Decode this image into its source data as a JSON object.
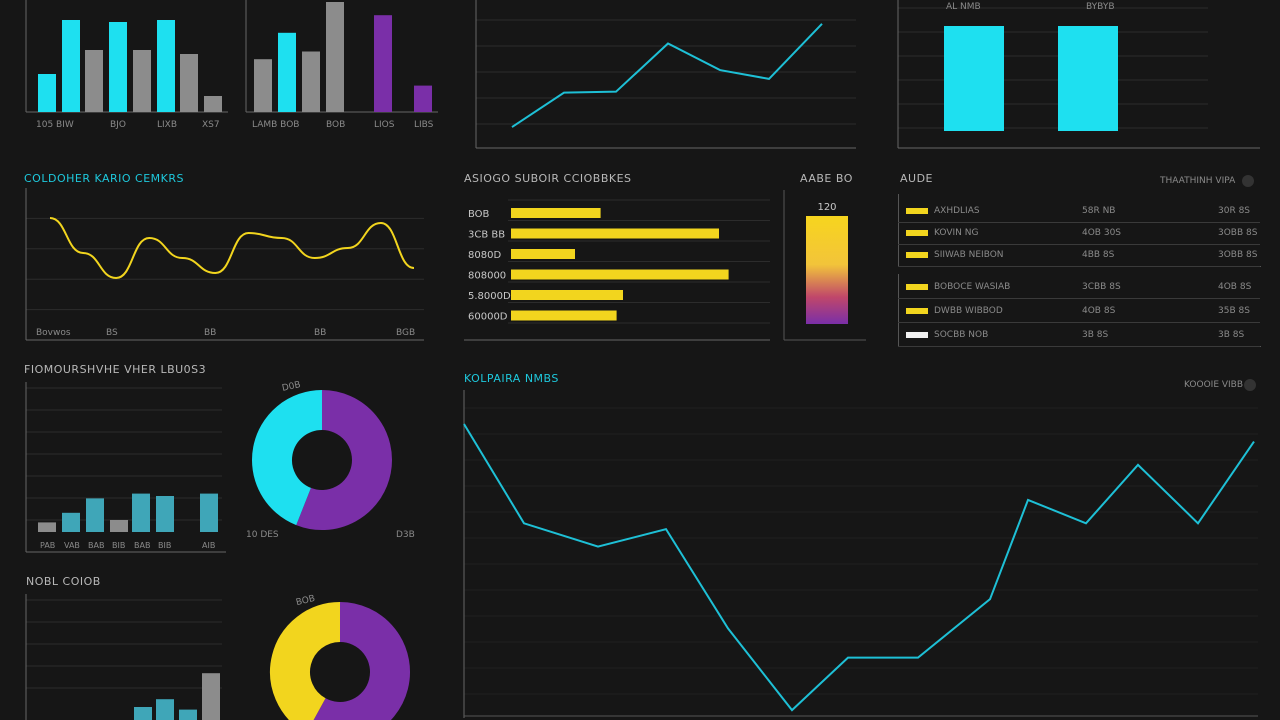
{
  "colors": {
    "bg": "#161616",
    "cyan": "#1ee0f0",
    "gray": "#8c8c8c",
    "purple": "#7a2fa8",
    "yellow": "#f2d51e",
    "line": "#1ec0d6",
    "grid": "#2c2c2c"
  },
  "panel_bar1": {
    "labels": [
      "105 BIW",
      "BJO",
      "LIXB",
      "XS7"
    ]
  },
  "panel_bar2": {
    "labels": [
      "LAMB BOB",
      "BOB",
      "LIOS",
      "LIBS"
    ]
  },
  "panel_line_top": {
    "labels": [
      "",
      "",
      ""
    ]
  },
  "panel_bars_right": {
    "header_left": "AL NMB",
    "header_right": "BYBYB",
    "labels": [
      "",
      "",
      "",
      "",
      "",
      ""
    ]
  },
  "panel_wave": {
    "title": "COLDOHER KARIO CEMKRS",
    "labels": [
      "Bovwos",
      "BS",
      "BB",
      "BB",
      "BGB"
    ]
  },
  "panel_hbar": {
    "title": "ASIOGO SUBOIR CCIOBBKES",
    "labels": [
      "BOB",
      "3CB BB",
      "8080D",
      "808000",
      "5.8000D",
      "60000D"
    ]
  },
  "panel_gauge": {
    "title": "AABE BO",
    "value": "120"
  },
  "panel_table": {
    "title": "AUDE",
    "toggle_label": "THAATHINH VIPA",
    "rows1": [
      {
        "name": "AXHDLIAS",
        "v1": "58R NB",
        "v2": "30R 8S"
      },
      {
        "name": "KOVIN NG",
        "v1": "4OB 30S",
        "v2": "3OBB 8S"
      },
      {
        "name": "SIIWAB NEIBON",
        "v1": "4BB 8S",
        "v2": "3OBB 8S"
      }
    ],
    "rows2": [
      {
        "name": "BOBOCE WASIAB",
        "v1": "3CBB 8S",
        "v2": "4OB 8S"
      },
      {
        "name": "DWBB WIBBOD",
        "v1": "4OB 8S",
        "v2": "35B 8S"
      },
      {
        "name": "SOCBB NOB",
        "v1": "3B 8S",
        "v2": "3B 8S"
      }
    ]
  },
  "panel_donut1": {
    "title": "FIOMOURSHVHE VHER LBU0S3",
    "label_top": "D0B",
    "label_left": "10 DES",
    "label_right": "D3B",
    "bar_labels": [
      "PAB",
      "VAB",
      "BAB",
      "BIB",
      "BAB",
      "BIB",
      "AIB"
    ]
  },
  "panel_donut2": {
    "title": "NOBL COIOB",
    "label_top": "BOB"
  },
  "panel_bigline": {
    "title": "KOLPAIRA NMBS",
    "toggle_label": "KOOOIE VIBB"
  },
  "chart_data": [
    {
      "type": "bar",
      "series": [
        {
          "name": "",
          "values": [
            38,
            92,
            62,
            90,
            62,
            92,
            58,
            16
          ]
        }
      ],
      "ylim": [
        0,
        100
      ]
    },
    {
      "type": "bar",
      "series": [
        {
          "name": "",
          "values": [
            48,
            72,
            55,
            100,
            88,
            24
          ]
        }
      ],
      "ylim": [
        0,
        100
      ]
    },
    {
      "type": "line",
      "values": [
        5,
        40,
        41,
        90,
        63,
        54,
        110
      ],
      "ylim": [
        0,
        120
      ]
    },
    {
      "type": "bar",
      "values": [
        100,
        100
      ],
      "ylim": [
        0,
        100
      ]
    },
    {
      "type": "line",
      "title": "COLDOHER KARIO CEMKRS",
      "values": [
        90,
        55,
        30,
        70,
        50,
        35,
        75,
        70,
        50,
        60,
        85,
        40
      ],
      "ylim": [
        0,
        100
      ]
    },
    {
      "type": "bar",
      "title": "ASIOGO SUBOIR CCIOBBKES",
      "categories": [
        "BOB",
        "3CB BB",
        "8080D",
        "808000",
        "5.8000D",
        "60000D"
      ],
      "values": [
        28,
        65,
        20,
        68,
        35,
        33
      ],
      "xlim": [
        0,
        100
      ]
    },
    {
      "type": "bar",
      "title": "AABE BO",
      "values": [
        120
      ]
    },
    {
      "type": "bar",
      "title": "FIOMOURSHVHE VHER LBU0S3",
      "values": [
        8,
        16,
        28,
        10,
        32,
        30,
        32
      ],
      "ylim": [
        0,
        100
      ]
    },
    {
      "type": "pie",
      "title": "FIOMOURSHVHE VHER LBU0S3",
      "slices": [
        {
          "label": "D0B",
          "value": 44
        },
        {
          "label": "10 DES",
          "value": 56
        }
      ]
    },
    {
      "type": "bar",
      "title": "NOBL COIOB",
      "values": [
        10,
        16,
        8,
        36
      ],
      "ylim": [
        0,
        100
      ]
    },
    {
      "type": "pie",
      "title": "NOBL COIOB",
      "slices": [
        {
          "label": "BOB",
          "value": 42
        },
        {
          "label": "",
          "value": 58
        }
      ]
    },
    {
      "type": "line",
      "title": "KOLPAIRA NMBS",
      "values": [
        100,
        66,
        58,
        64,
        30,
        2,
        20,
        20,
        40,
        74,
        66,
        86,
        66,
        94
      ],
      "ylim": [
        0,
        100
      ]
    }
  ]
}
